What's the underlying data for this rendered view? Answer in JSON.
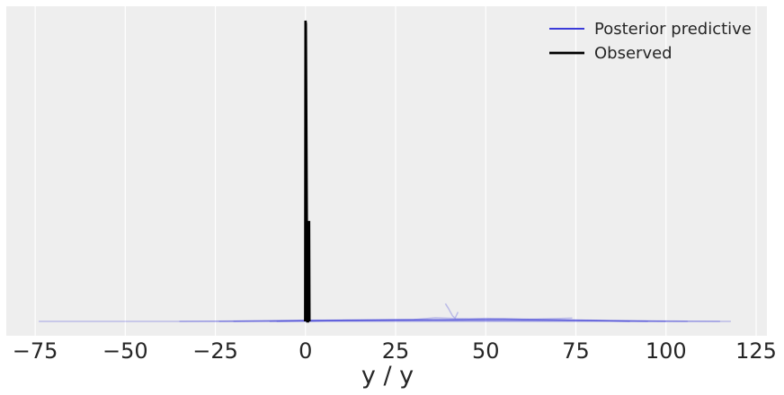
{
  "chart_data": {
    "type": "line",
    "title": "",
    "xlabel": "y / y",
    "ylabel": "",
    "xlim": [
      -83,
      128
    ],
    "ylim": [
      0,
      1
    ],
    "x_ticks": [
      -75,
      -50,
      -25,
      0,
      25,
      50,
      75,
      100,
      125
    ],
    "y_ticks_visible": false,
    "grid": true,
    "legend": {
      "position": "top-right",
      "entries": [
        {
          "label": "Posterior predictive",
          "color": "#3b3bd9"
        },
        {
          "label": "Observed",
          "color": "#000000"
        }
      ]
    },
    "series": [
      {
        "name": "Posterior predictive",
        "color": "#3b3bd9",
        "samples": [
          {
            "x": [
              -74,
              -40,
              0,
              40,
              80,
              118
            ],
            "y": [
              0,
              0,
              0,
              0,
              0,
              0
            ]
          },
          {
            "x": [
              -35,
              -10,
              0,
              20,
              40,
              60,
              80,
              106
            ],
            "y": [
              0,
              0.002,
              0.003,
              0.003,
              0.004,
              0.003,
              0.002,
              0
            ]
          },
          {
            "x": [
              -24,
              0,
              25,
              55,
              80,
              100
            ],
            "y": [
              0,
              0.004,
              0.005,
              0.006,
              0.003,
              0
            ]
          },
          {
            "x": [
              -10,
              0,
              15,
              30,
              36,
              45,
              60,
              74
            ],
            "y": [
              0,
              0.003,
              0.004,
              0.006,
              0.012,
              0.008,
              0.006,
              0.011
            ]
          },
          {
            "x": [
              0,
              10,
              25,
              40,
              50,
              60,
              80,
              90
            ],
            "y": [
              0,
              0.004,
              0.006,
              0.006,
              0.01,
              0.007,
              0.004,
              0
            ]
          },
          {
            "x": [
              38.8,
              39.6,
              40.8,
              41.5,
              42.3
            ],
            "y": [
              0.059,
              0.044,
              0.018,
              0.011,
              0.031
            ]
          },
          {
            "x": [
              -8,
              5,
              20,
              45,
              55,
              70,
              95
            ],
            "y": [
              0,
              0.002,
              0.004,
              0.005,
              0.009,
              0.005,
              0
            ]
          },
          {
            "x": [
              -20,
              0,
              30,
              60,
              90,
              115
            ],
            "y": [
              0,
              0.002,
              0.003,
              0.003,
              0.002,
              0
            ]
          }
        ]
      },
      {
        "name": "Observed",
        "color": "#000000",
        "x": [
          -0.1,
          0.0,
          0.1,
          0.5,
          0.7,
          0.85,
          1.0,
          1.1
        ],
        "y": [
          0.0,
          1.0,
          0.99,
          0.0,
          0.0,
          0.33,
          0.33,
          0.0
        ]
      }
    ]
  }
}
